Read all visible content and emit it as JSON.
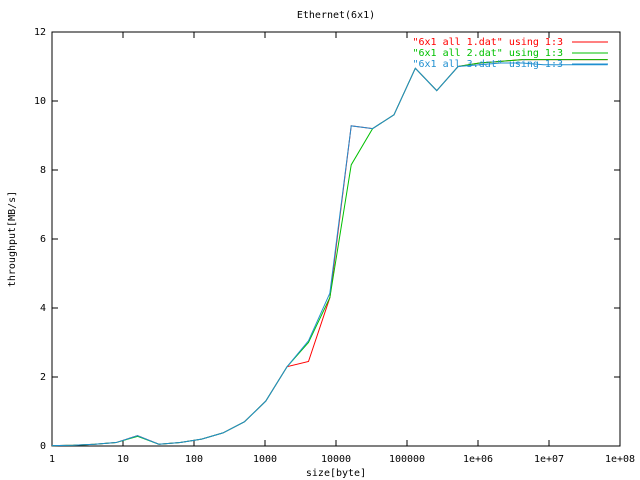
{
  "chart_data": {
    "type": "line",
    "title": "Ethernet(6x1)",
    "x_label": "size[byte]",
    "y_label": "throughput[MB/s]",
    "log_x": true,
    "x": [
      1,
      2,
      4,
      8,
      16,
      32,
      64,
      128,
      256,
      512,
      1024,
      2048,
      4096,
      8192,
      16384,
      32768,
      65536,
      131072,
      262144,
      524288,
      1048576,
      2097152,
      4194304,
      8388608,
      16777216,
      33554432,
      67108864
    ],
    "series": [
      {
        "name": "\"6x1 all 1.dat\" using 1:3",
        "color": "#ff0000",
        "values": [
          0.01,
          0.02,
          0.05,
          0.1,
          0.3,
          0.05,
          0.1,
          0.2,
          0.38,
          0.7,
          1.3,
          2.3,
          2.45,
          4.3,
          9.28,
          9.2,
          9.6,
          10.95,
          10.3,
          11.0,
          11.1,
          11.15,
          11.2,
          11.2,
          11.2,
          11.2,
          11.2
        ]
      },
      {
        "name": "\"6x1 all 2.dat\" using 1:3",
        "color": "#00c000",
        "values": [
          0.01,
          0.02,
          0.05,
          0.1,
          0.28,
          0.05,
          0.1,
          0.2,
          0.38,
          0.7,
          1.3,
          2.3,
          3.0,
          4.3,
          8.15,
          9.2,
          9.6,
          10.95,
          10.3,
          11.0,
          11.1,
          11.15,
          11.2,
          11.2,
          11.2,
          11.2,
          11.2
        ]
      },
      {
        "name": "\"6x1 all 3.dat\" using 1:3",
        "color": "#1f8fd0",
        "values": [
          0.01,
          0.02,
          0.05,
          0.1,
          0.3,
          0.05,
          0.1,
          0.2,
          0.38,
          0.7,
          1.3,
          2.3,
          3.05,
          4.43,
          9.28,
          9.2,
          9.6,
          10.95,
          10.3,
          11.0,
          11.05,
          11.1,
          11.1,
          11.05,
          11.05,
          11.05,
          11.05
        ]
      }
    ],
    "xlim": [
      1,
      100000000
    ],
    "xticks": [
      1,
      10,
      100,
      1000,
      10000,
      100000,
      {
        "value": 1000000,
        "label": "1e+06"
      },
      {
        "value": 10000000,
        "label": "1e+07"
      },
      {
        "value": 100000000,
        "label": "1e+08"
      }
    ],
    "ylim": [
      0,
      12
    ],
    "yticks": [
      0,
      2,
      4,
      6,
      8,
      10,
      12
    ],
    "legend": "top-right"
  }
}
